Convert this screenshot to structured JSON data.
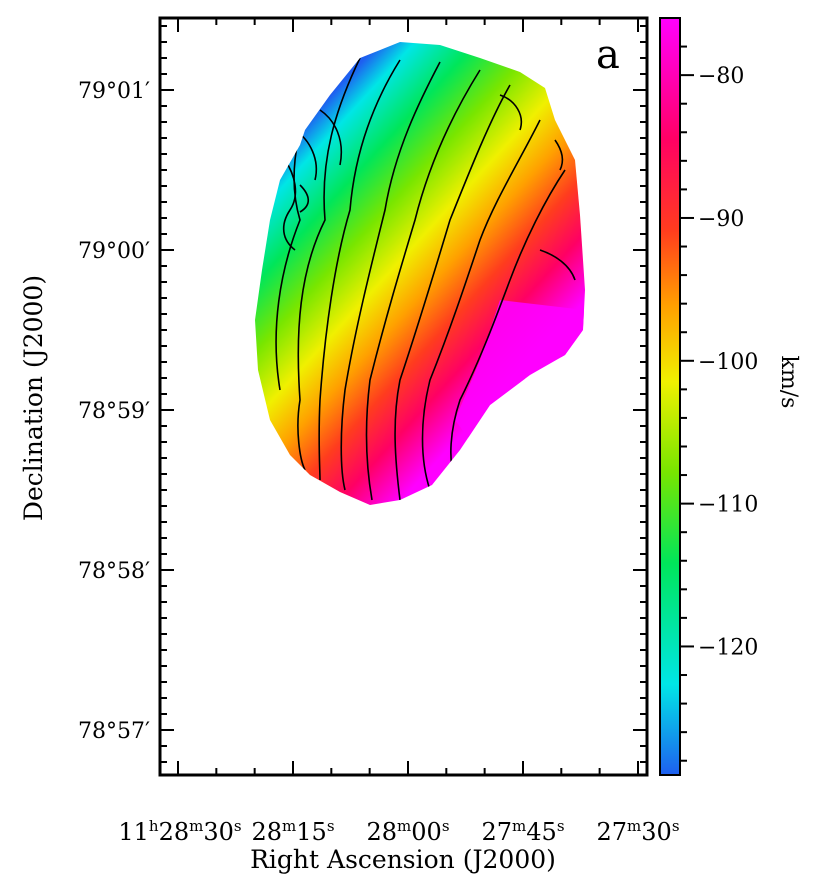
{
  "panel_label": "a",
  "chart_data": {
    "type": "heatmap",
    "title": "",
    "panel_label": "a",
    "xlabel": "Right Ascension (J2000)",
    "ylabel": "Declination (J2000)",
    "x_ticks": [
      {
        "h": "11",
        "hs": "h",
        "m": "28",
        "ms": "m",
        "s": "30",
        "ss": "s"
      },
      {
        "m": "28",
        "ms": "m",
        "s": "15",
        "ss": "s"
      },
      {
        "m": "28",
        "ms": "m",
        "s": "00",
        "ss": "s"
      },
      {
        "m": "27",
        "ms": "m",
        "s": "45",
        "ss": "s"
      },
      {
        "m": "27",
        "ms": "m",
        "s": "30",
        "ss": "s"
      }
    ],
    "y_ticks": [
      "79°01′",
      "79°00′",
      "78°59′",
      "78°58′",
      "78°57′"
    ],
    "colorbar": {
      "label": "km/s",
      "ticks": [
        "−80",
        "−90",
        "−100",
        "−110",
        "−120"
      ],
      "range": [
        -129,
        -76
      ],
      "colors": [
        "#1e5ff0",
        "#00e6e6",
        "#00e65a",
        "#78e600",
        "#f0f000",
        "#ffa000",
        "#ff3c1e",
        "#ff0064",
        "#ff00ff"
      ]
    },
    "contours": "black iso-velocity contours overlaid",
    "gradient_direction": "velocity increases from upper-left (about −125 km/s) to lower-right (about −80 km/s)"
  }
}
